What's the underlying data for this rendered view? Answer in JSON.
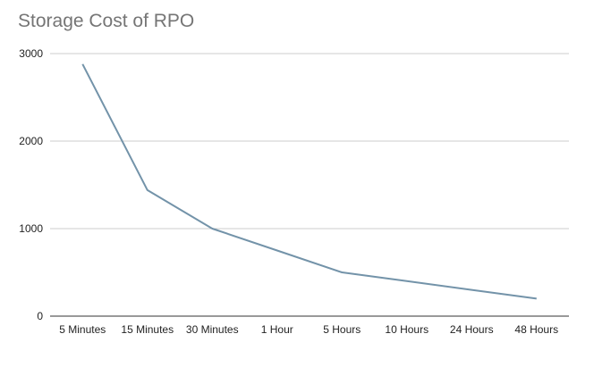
{
  "chart_data": {
    "type": "line",
    "title": "Storage Cost of RPO",
    "xlabel": "",
    "ylabel": "",
    "categories": [
      "5 Minutes",
      "15 Minutes",
      "30 Minutes",
      "1 Hour",
      "5 Hours",
      "10 Hours",
      "24 Hours",
      "48 Hours"
    ],
    "series": [
      {
        "values": [
          2880,
          1440,
          1000,
          750,
          500,
          400,
          300,
          200
        ]
      }
    ],
    "ylim": [
      0,
      3000
    ],
    "yticks": [
      0,
      1000,
      2000,
      3000
    ],
    "grid": true,
    "legend": "none",
    "colors": {
      "line": "#7393a9",
      "grid": "#cccccc",
      "axis": "#333333"
    }
  }
}
